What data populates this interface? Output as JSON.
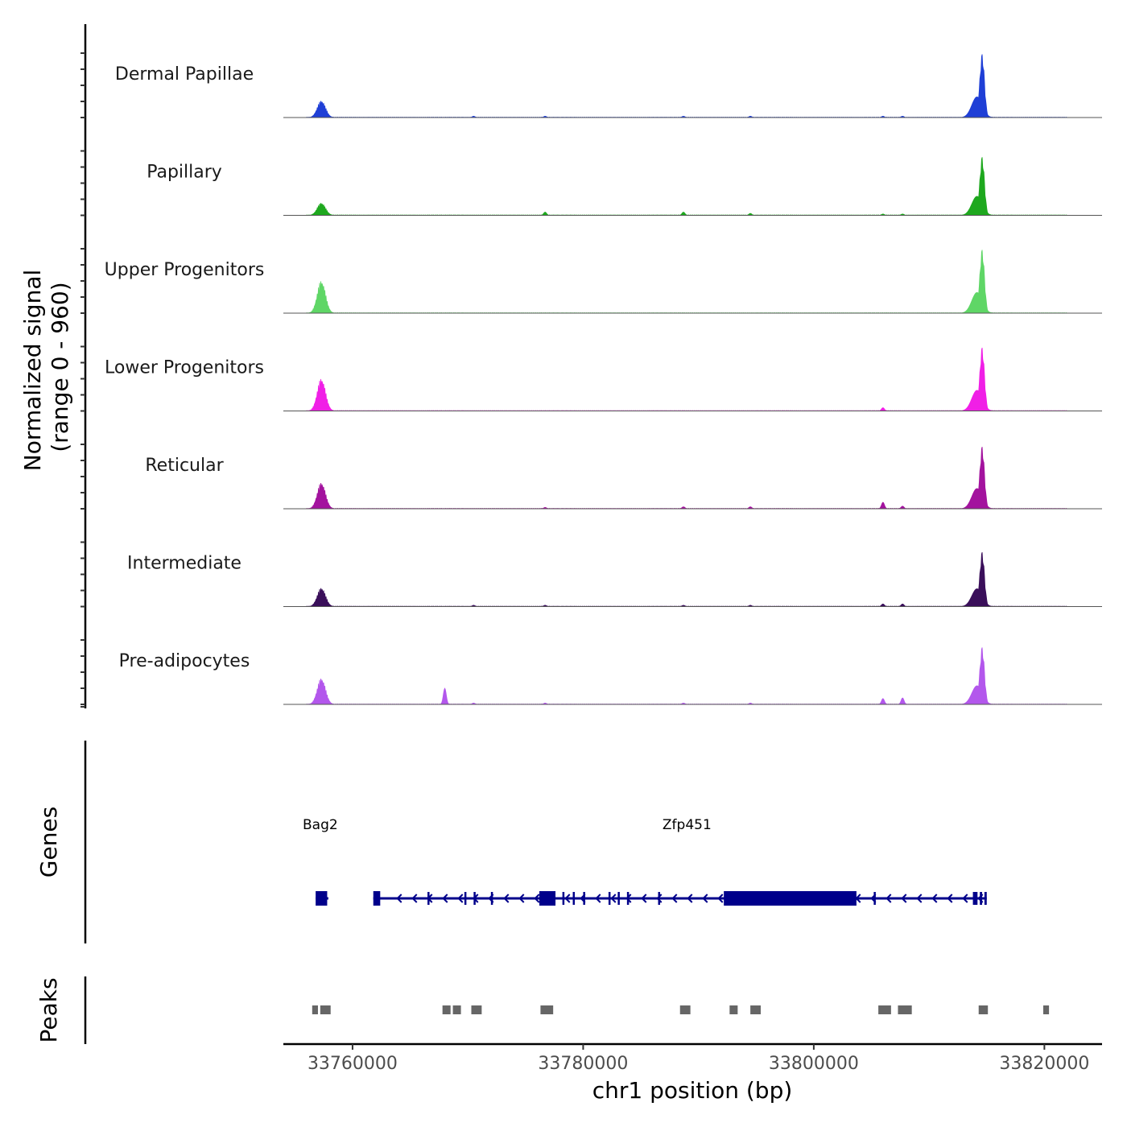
{
  "chart_data": {
    "type": "area",
    "title": "",
    "chromosome": "chr1",
    "xlabel": "chr1 position (bp)",
    "ylabel_line1": "Normalized signal",
    "ylabel_line2": "(range 0 - 960)",
    "signal_range": [
      0,
      960
    ],
    "xlim": [
      33754000,
      33825000
    ],
    "x_ticks": [
      {
        "value": 33760000,
        "label": "33760000"
      },
      {
        "value": 33780000,
        "label": "33780000"
      },
      {
        "value": 33800000,
        "label": "33800000"
      },
      {
        "value": 33820000,
        "label": "33820000"
      }
    ],
    "peak_regions": [
      {
        "center": 33757000,
        "width": 3000,
        "max": 0.3
      },
      {
        "center": 33768500,
        "width": 1200,
        "max": 0.03
      },
      {
        "center": 33770500,
        "width": 1000,
        "max": 0.02
      },
      {
        "center": 33776700,
        "width": 1200,
        "max": 0.03
      },
      {
        "center": 33788700,
        "width": 1000,
        "max": 0.02
      },
      {
        "center": 33806000,
        "width": 800,
        "max": 0.05
      },
      {
        "center": 33807700,
        "width": 800,
        "max": 0.03
      },
      {
        "center": 33814500,
        "width": 2200,
        "max": 1.0
      },
      {
        "center": 33820000,
        "width": 600,
        "max": 0.02
      }
    ],
    "series": [
      {
        "name": "Dermal Papillae",
        "color": "#1f3fd6",
        "peak1": 0.27,
        "peak2": 1.0,
        "minor": [
          0.0,
          0.02,
          0.02,
          0.02,
          0.02,
          0.02,
          0.02
        ]
      },
      {
        "name": "Papillary",
        "color": "#1ea81e",
        "peak1": 0.2,
        "peak2": 0.92,
        "minor": [
          0.0,
          0.0,
          0.05,
          0.05,
          0.03,
          0.02,
          0.02
        ]
      },
      {
        "name": "Upper Progenitors",
        "color": "#5fd666",
        "peak1": 0.52,
        "peak2": 1.0,
        "minor": [
          0.0,
          0.0,
          0.0,
          0.0,
          0.0,
          0.0,
          0.0
        ]
      },
      {
        "name": "Lower Progenitors",
        "color": "#f01fe6",
        "peak1": 0.52,
        "peak2": 1.0,
        "minor": [
          0.0,
          0.0,
          0.0,
          0.0,
          0.0,
          0.05,
          0.0
        ]
      },
      {
        "name": "Reticular",
        "color": "#a3139e",
        "peak1": 0.42,
        "peak2": 0.98,
        "minor": [
          0.0,
          0.0,
          0.02,
          0.03,
          0.03,
          0.1,
          0.04
        ]
      },
      {
        "name": "Intermediate",
        "color": "#3a0f5a",
        "peak1": 0.3,
        "peak2": 0.86,
        "minor": [
          0.0,
          0.02,
          0.02,
          0.02,
          0.02,
          0.04,
          0.04
        ]
      },
      {
        "name": "Pre-adipocytes",
        "color": "#b357ec",
        "peak1": 0.42,
        "peak2": 0.9,
        "minor": [
          0.25,
          0.02,
          0.02,
          0.02,
          0.02,
          0.09,
          0.1
        ]
      }
    ],
    "genes_panel": {
      "title": "Genes",
      "color": "#00008b",
      "genes": [
        {
          "name": "Bag2",
          "label_pos": 33757200,
          "start": 33756800,
          "end": 33757900,
          "strand": "+",
          "exons": [
            [
              33756800,
              33757800
            ]
          ]
        },
        {
          "name": "Zfp451",
          "label_pos": 33789000,
          "start": 33761800,
          "end": 33815000,
          "strand": "-",
          "exons": [
            [
              33761800,
              33762400
            ],
            [
              33766500,
              33766600
            ],
            [
              33769700,
              33769800
            ],
            [
              33770500,
              33770600
            ],
            [
              33772000,
              33772100
            ],
            [
              33776200,
              33777600
            ],
            [
              33778200,
              33778300
            ],
            [
              33779100,
              33779200
            ],
            [
              33780000,
              33780100
            ],
            [
              33782200,
              33782300
            ],
            [
              33783000,
              33783100
            ],
            [
              33783800,
              33783900
            ],
            [
              33786500,
              33786600
            ],
            [
              33792200,
              33803700
            ],
            [
              33805200,
              33805300
            ],
            [
              33813800,
              33814200
            ],
            [
              33814400,
              33814600
            ],
            [
              33814800,
              33815000
            ]
          ]
        }
      ]
    },
    "peaks_panel": {
      "title": "Peaks",
      "color": "#666666",
      "regions": [
        [
          33756500,
          33757000
        ],
        [
          33757200,
          33758100
        ],
        [
          33767800,
          33768500
        ],
        [
          33768700,
          33769400
        ],
        [
          33770300,
          33771200
        ],
        [
          33776300,
          33777400
        ],
        [
          33788400,
          33789300
        ],
        [
          33792700,
          33793400
        ],
        [
          33794500,
          33795400
        ],
        [
          33805600,
          33806700
        ],
        [
          33807300,
          33808500
        ],
        [
          33814300,
          33815100
        ],
        [
          33819900,
          33820400
        ]
      ]
    }
  }
}
